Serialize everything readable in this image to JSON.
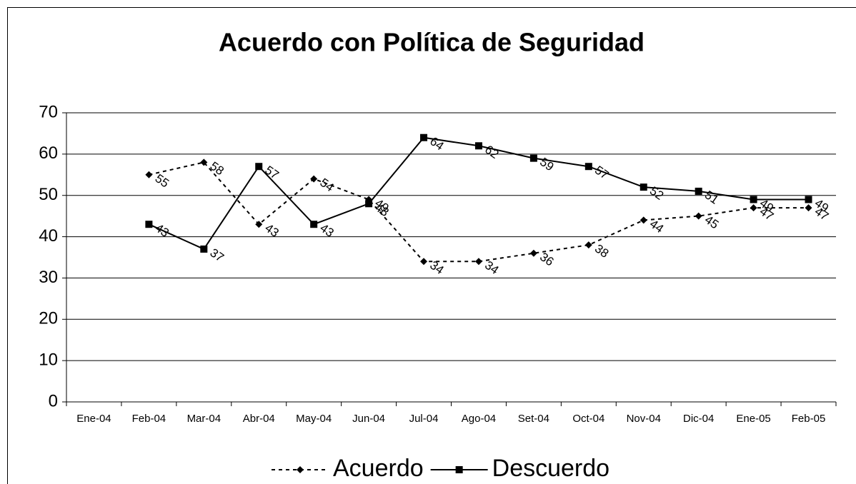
{
  "chart_data": {
    "type": "line",
    "title": "Acuerdo con Política de Seguridad",
    "categories": [
      "Ene-04",
      "Feb-04",
      "Mar-04",
      "Abr-04",
      "May-04",
      "Jun-04",
      "Jul-04",
      "Ago-04",
      "Set-04",
      "Oct-04",
      "Nov-04",
      "Dic-04",
      "Ene-05",
      "Feb-05"
    ],
    "series": [
      {
        "name": "Acuerdo",
        "color": "#000000",
        "line_style": "dashed",
        "marker": "diamond",
        "values": [
          null,
          55,
          58,
          43,
          54,
          49,
          34,
          34,
          36,
          38,
          44,
          45,
          47,
          47
        ]
      },
      {
        "name": "Descuerdo",
        "color": "#000000",
        "line_style": "solid",
        "marker": "square",
        "values": [
          null,
          43,
          37,
          57,
          43,
          48,
          64,
          62,
          59,
          57,
          52,
          51,
          49,
          49
        ]
      }
    ],
    "ylim": [
      0,
      70
    ],
    "yticks": [
      0,
      10,
      20,
      30,
      40,
      50,
      60,
      70
    ],
    "grid": true,
    "legend": "bottom"
  }
}
